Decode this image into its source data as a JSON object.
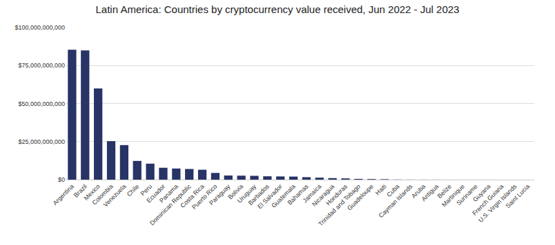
{
  "chart_data": {
    "type": "bar",
    "title": "Latin America: Countries by cryptocurrency value received, Jun 2022 - Jul 2023",
    "categories": [
      "Argentina",
      "Brazil",
      "Mexico",
      "Colombia",
      "Venezuela",
      "Chile",
      "Peru",
      "Ecuador",
      "Panama",
      "Dominican Republic",
      "Costa Rica",
      "Puerto Rico",
      "Paraguay",
      "Bolivia",
      "Uruguay",
      "Barbados",
      "El Salvador",
      "Guatemala",
      "Bahamas",
      "Jamaica",
      "Nicaragua",
      "Honduras",
      "Trinidad and Tobago",
      "Guadeloupe",
      "Haiti",
      "Cuba",
      "Cayman Islands",
      "Aruba",
      "Antigua",
      "Belize",
      "Martinique",
      "Suriname",
      "Guyana",
      "French Guiana",
      "U.S. Virgin Islands",
      "Saint Lucia"
    ],
    "values": [
      85400000000,
      85000000000,
      60000000000,
      25300000000,
      22700000000,
      12300000000,
      10500000000,
      7800000000,
      7300000000,
      7000000000,
      6500000000,
      4400000000,
      2700000000,
      2600000000,
      2500000000,
      2200000000,
      2100000000,
      2000000000,
      1600000000,
      1300000000,
      1000000000,
      800000000,
      500000000,
      400000000,
      300000000,
      100000000,
      60000000,
      50000000,
      40000000,
      30000000,
      30000000,
      20000000,
      20000000,
      10000000,
      10000000,
      10000000
    ],
    "color": "#283366",
    "ylim": [
      0,
      100000000000
    ],
    "yticks": [
      {
        "value": 0,
        "label": "$0"
      },
      {
        "value": 25000000000,
        "label": "$25,000,000,000"
      },
      {
        "value": 50000000000,
        "label": "$50,000,000,000"
      },
      {
        "value": 75000000000,
        "label": "$75,000,000,000"
      },
      {
        "value": 100000000000,
        "label": "$100,000,000,000"
      }
    ],
    "grid": true
  }
}
